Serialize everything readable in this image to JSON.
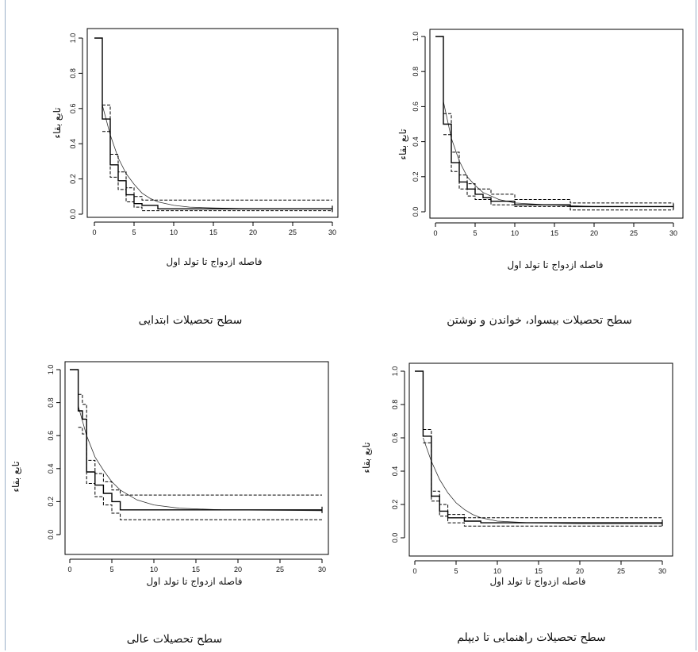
{
  "chart_data": [
    {
      "type": "line",
      "xlabel": "فاصله ازدواج تا تولد اول",
      "ylabel": "تابع بقاء",
      "caption": "سطح تحصیلات ابتدایی",
      "xlim": [
        0,
        30
      ],
      "ylim": [
        0,
        1
      ],
      "xticks": [
        "0",
        "5",
        "10",
        "15",
        "20",
        "25",
        "30"
      ],
      "yticks": [
        "0.0",
        "0.2",
        "0.4",
        "0.6",
        "0.8",
        "1.0"
      ],
      "km": [
        [
          0,
          1
        ],
        [
          1,
          1
        ],
        [
          1,
          0.54
        ],
        [
          2,
          0.54
        ],
        [
          2,
          0.28
        ],
        [
          3,
          0.28
        ],
        [
          3,
          0.19
        ],
        [
          4,
          0.19
        ],
        [
          4,
          0.11
        ],
        [
          5,
          0.11
        ],
        [
          5,
          0.06
        ],
        [
          6,
          0.06
        ],
        [
          6,
          0.05
        ],
        [
          8,
          0.05
        ],
        [
          8,
          0.03
        ],
        [
          30,
          0.03
        ]
      ],
      "upper": [
        [
          1,
          0.62
        ],
        [
          2,
          0.62
        ],
        [
          2,
          0.34
        ],
        [
          3,
          0.34
        ],
        [
          3,
          0.24
        ],
        [
          4,
          0.24
        ],
        [
          4,
          0.15
        ],
        [
          5,
          0.15
        ],
        [
          5,
          0.1
        ],
        [
          6,
          0.1
        ],
        [
          6,
          0.08
        ],
        [
          30,
          0.08
        ]
      ],
      "lower": [
        [
          1,
          0.47
        ],
        [
          2,
          0.47
        ],
        [
          2,
          0.21
        ],
        [
          3,
          0.21
        ],
        [
          3,
          0.14
        ],
        [
          4,
          0.14
        ],
        [
          4,
          0.07
        ],
        [
          5,
          0.07
        ],
        [
          5,
          0.04
        ],
        [
          6,
          0.04
        ],
        [
          6,
          0.02
        ],
        [
          30,
          0.02
        ]
      ],
      "fitted": [
        [
          1,
          0.62
        ],
        [
          2,
          0.45
        ],
        [
          3,
          0.32
        ],
        [
          4,
          0.23
        ],
        [
          5,
          0.17
        ],
        [
          6,
          0.12
        ],
        [
          7,
          0.09
        ],
        [
          8,
          0.07
        ],
        [
          10,
          0.05
        ],
        [
          12,
          0.04
        ],
        [
          15,
          0.035
        ],
        [
          20,
          0.03
        ],
        [
          30,
          0.03
        ]
      ]
    },
    {
      "type": "line",
      "xlabel": "فاصله ازدواج تا تولد اول",
      "ylabel": "تابع بقاء",
      "caption": "سطح تحصیلات بیسواد، خواندن و نوشتن",
      "xlim": [
        0,
        30
      ],
      "ylim": [
        0,
        1
      ],
      "xticks": [
        "0",
        "5",
        "10",
        "15",
        "20",
        "25",
        "30"
      ],
      "yticks": [
        "0.0",
        "0.2",
        "0.4",
        "0.6",
        "0.8",
        "1.0"
      ],
      "km": [
        [
          0,
          1
        ],
        [
          1,
          1
        ],
        [
          1,
          0.5
        ],
        [
          2,
          0.5
        ],
        [
          2,
          0.28
        ],
        [
          3,
          0.28
        ],
        [
          3,
          0.17
        ],
        [
          4,
          0.17
        ],
        [
          4,
          0.13
        ],
        [
          5,
          0.13
        ],
        [
          5,
          0.1
        ],
        [
          6,
          0.1
        ],
        [
          6,
          0.08
        ],
        [
          7,
          0.08
        ],
        [
          7,
          0.06
        ],
        [
          10,
          0.06
        ],
        [
          10,
          0.04
        ],
        [
          17,
          0.04
        ],
        [
          17,
          0.03
        ],
        [
          30,
          0.03
        ]
      ],
      "upper": [
        [
          1,
          0.56
        ],
        [
          2,
          0.56
        ],
        [
          2,
          0.34
        ],
        [
          3,
          0.34
        ],
        [
          3,
          0.21
        ],
        [
          4,
          0.21
        ],
        [
          4,
          0.16
        ],
        [
          5,
          0.16
        ],
        [
          5,
          0.13
        ],
        [
          7,
          0.13
        ],
        [
          7,
          0.1
        ],
        [
          10,
          0.1
        ],
        [
          10,
          0.07
        ],
        [
          17,
          0.07
        ],
        [
          17,
          0.05
        ],
        [
          30,
          0.05
        ]
      ],
      "lower": [
        [
          1,
          0.44
        ],
        [
          2,
          0.44
        ],
        [
          2,
          0.23
        ],
        [
          3,
          0.23
        ],
        [
          3,
          0.13
        ],
        [
          4,
          0.13
        ],
        [
          4,
          0.09
        ],
        [
          5,
          0.09
        ],
        [
          5,
          0.07
        ],
        [
          7,
          0.07
        ],
        [
          7,
          0.04
        ],
        [
          10,
          0.04
        ],
        [
          10,
          0.03
        ],
        [
          17,
          0.03
        ],
        [
          17,
          0.01
        ],
        [
          30,
          0.01
        ]
      ],
      "fitted": [
        [
          1,
          0.63
        ],
        [
          2,
          0.42
        ],
        [
          3,
          0.29
        ],
        [
          4,
          0.2
        ],
        [
          5,
          0.15
        ],
        [
          6,
          0.11
        ],
        [
          8,
          0.07
        ],
        [
          10,
          0.05
        ],
        [
          14,
          0.04
        ],
        [
          20,
          0.03
        ],
        [
          30,
          0.03
        ]
      ]
    },
    {
      "type": "line",
      "xlabel": "فاصله ازدواج تا تولد اول",
      "ylabel": "تابع بقاء",
      "caption": "سطح تحصیلات عالی",
      "xlim": [
        0,
        30
      ],
      "ylim": [
        0,
        1
      ],
      "xticks": [
        "0",
        "5",
        "10",
        "15",
        "20",
        "25",
        "30"
      ],
      "yticks": [
        "0.0",
        "0.2",
        "0.4",
        "0.6",
        "0.8",
        "1.0"
      ],
      "km": [
        [
          0,
          1
        ],
        [
          1,
          1
        ],
        [
          1,
          0.75
        ],
        [
          1.5,
          0.75
        ],
        [
          1.5,
          0.7
        ],
        [
          2,
          0.7
        ],
        [
          2,
          0.38
        ],
        [
          3,
          0.38
        ],
        [
          3,
          0.3
        ],
        [
          4,
          0.3
        ],
        [
          4,
          0.25
        ],
        [
          5,
          0.25
        ],
        [
          5,
          0.2
        ],
        [
          6,
          0.2
        ],
        [
          6,
          0.15
        ],
        [
          30,
          0.15
        ]
      ],
      "upper": [
        [
          1,
          0.85
        ],
        [
          1.5,
          0.85
        ],
        [
          1.5,
          0.79
        ],
        [
          2,
          0.79
        ],
        [
          2,
          0.45
        ],
        [
          3,
          0.45
        ],
        [
          3,
          0.37
        ],
        [
          4,
          0.37
        ],
        [
          4,
          0.32
        ],
        [
          5,
          0.32
        ],
        [
          5,
          0.27
        ],
        [
          6,
          0.27
        ],
        [
          6,
          0.24
        ],
        [
          30,
          0.24
        ]
      ],
      "lower": [
        [
          1,
          0.65
        ],
        [
          1.5,
          0.65
        ],
        [
          1.5,
          0.61
        ],
        [
          2,
          0.61
        ],
        [
          2,
          0.31
        ],
        [
          3,
          0.31
        ],
        [
          3,
          0.23
        ],
        [
          4,
          0.23
        ],
        [
          4,
          0.18
        ],
        [
          5,
          0.18
        ],
        [
          5,
          0.13
        ],
        [
          6,
          0.13
        ],
        [
          6,
          0.09
        ],
        [
          30,
          0.09
        ]
      ],
      "fitted": [
        [
          1,
          0.78
        ],
        [
          2,
          0.6
        ],
        [
          3,
          0.47
        ],
        [
          4,
          0.39
        ],
        [
          5,
          0.32
        ],
        [
          6,
          0.27
        ],
        [
          8,
          0.21
        ],
        [
          10,
          0.18
        ],
        [
          13,
          0.16
        ],
        [
          18,
          0.15
        ],
        [
          30,
          0.145
        ]
      ]
    },
    {
      "type": "line",
      "xlabel": "فاصله ازدواج تا تولد اول",
      "ylabel": "تابع بقاء",
      "caption": "سطح تحصیلات راهنمایی تا دیپلم",
      "xlim": [
        0,
        30
      ],
      "ylim": [
        0,
        1
      ],
      "xticks": [
        "0",
        "5",
        "10",
        "15",
        "20",
        "25",
        "30"
      ],
      "yticks": [
        "0.0",
        "0.2",
        "0.4",
        "0.6",
        "0.8",
        "1.0"
      ],
      "km": [
        [
          0,
          1
        ],
        [
          1,
          1
        ],
        [
          1,
          0.61
        ],
        [
          2,
          0.61
        ],
        [
          2,
          0.25
        ],
        [
          3,
          0.25
        ],
        [
          3,
          0.16
        ],
        [
          4,
          0.16
        ],
        [
          4,
          0.12
        ],
        [
          6,
          0.12
        ],
        [
          6,
          0.1
        ],
        [
          8,
          0.1
        ],
        [
          8,
          0.09
        ],
        [
          30,
          0.09
        ]
      ],
      "upper": [
        [
          1,
          0.65
        ],
        [
          2,
          0.65
        ],
        [
          2,
          0.28
        ],
        [
          3,
          0.28
        ],
        [
          3,
          0.2
        ],
        [
          4,
          0.2
        ],
        [
          4,
          0.14
        ],
        [
          6,
          0.14
        ],
        [
          6,
          0.12
        ],
        [
          30,
          0.12
        ]
      ],
      "lower": [
        [
          1,
          0.57
        ],
        [
          2,
          0.57
        ],
        [
          2,
          0.22
        ],
        [
          3,
          0.22
        ],
        [
          3,
          0.13
        ],
        [
          4,
          0.13
        ],
        [
          4,
          0.09
        ],
        [
          6,
          0.09
        ],
        [
          6,
          0.07
        ],
        [
          30,
          0.07
        ]
      ],
      "fitted": [
        [
          1,
          0.6
        ],
        [
          2,
          0.46
        ],
        [
          3,
          0.35
        ],
        [
          4,
          0.27
        ],
        [
          5,
          0.21
        ],
        [
          6,
          0.17
        ],
        [
          7,
          0.14
        ],
        [
          8,
          0.12
        ],
        [
          10,
          0.1
        ],
        [
          14,
          0.09
        ],
        [
          20,
          0.085
        ],
        [
          30,
          0.085
        ]
      ]
    }
  ]
}
